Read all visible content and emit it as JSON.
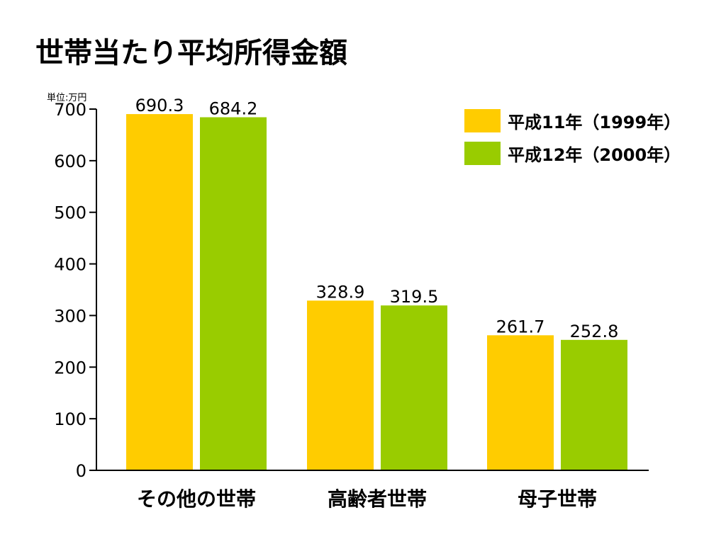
{
  "chart_data": {
    "type": "bar",
    "title": "世帯当たり平均所得金額",
    "unit_label": "単位:万円",
    "categories": [
      "その他の世帯",
      "高齢者世帯",
      "母子世帯"
    ],
    "series": [
      {
        "name": "平成11年（1999年）",
        "color": "#FFCC00",
        "values": [
          690.3,
          328.9,
          261.7
        ]
      },
      {
        "name": "平成12年（2000年）",
        "color": "#99CC00",
        "values": [
          684.2,
          319.5,
          252.8
        ]
      }
    ],
    "value_labels": [
      [
        "690.3",
        "328.9",
        "261.7"
      ],
      [
        "684.2",
        "319.5",
        "252.8"
      ]
    ],
    "ylim": [
      0,
      700
    ],
    "yticks": [
      0,
      100,
      200,
      300,
      400,
      500,
      600,
      700
    ],
    "xlabel": "",
    "ylabel": "",
    "grid": false,
    "legend_position": "top-right"
  }
}
